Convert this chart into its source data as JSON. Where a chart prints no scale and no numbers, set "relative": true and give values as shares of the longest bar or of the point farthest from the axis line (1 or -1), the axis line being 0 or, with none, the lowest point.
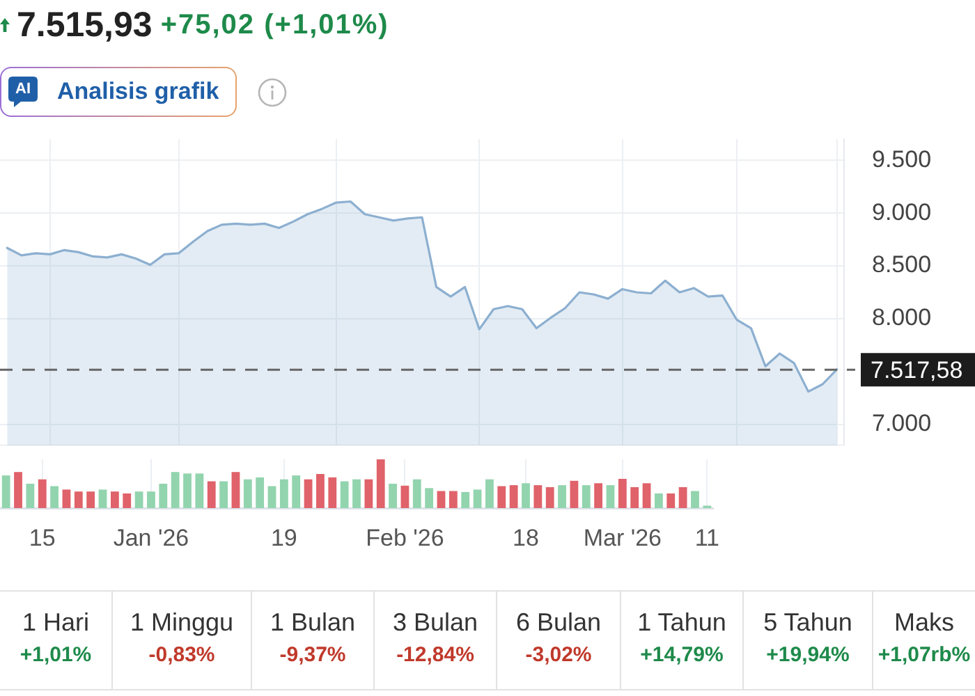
{
  "chart_data": [
    {
      "type": "area",
      "title": "7.515,93",
      "subtitle": "+75,02 (+1,01%)",
      "annotations": [
        "AI",
        "Analisis grafik"
      ],
      "categories": [
        null,
        null,
        null,
        null,
        null,
        null,
        null,
        null,
        null,
        null,
        null,
        null,
        null,
        null,
        null,
        null,
        null,
        null,
        null,
        null,
        null,
        null,
        null,
        null,
        null,
        null,
        null,
        null,
        null,
        null,
        null,
        null,
        null,
        null,
        null,
        null,
        null,
        null,
        null,
        null,
        null,
        null,
        null,
        null,
        null,
        null,
        null,
        null,
        null,
        null,
        null,
        null,
        null,
        null,
        null,
        null,
        null,
        null,
        null
      ],
      "values": [
        8670,
        8600,
        8620,
        8610,
        8650,
        8630,
        8590,
        8580,
        8610,
        8570,
        8510,
        8610,
        8620,
        8730,
        8830,
        8890,
        8900,
        8890,
        8900,
        8860,
        8920,
        8990,
        9040,
        9100,
        9110,
        8990,
        8960,
        8930,
        8950,
        8960,
        8300,
        8210,
        8300,
        7900,
        8090,
        8120,
        8090,
        7910,
        8010,
        8100,
        8250,
        8230,
        8190,
        8280,
        8250,
        8240,
        8360,
        8250,
        8290,
        8210,
        8220,
        7990,
        7910,
        7550,
        7670,
        7580,
        7310,
        7380,
        7520
      ],
      "color": "#8cafd0",
      "ylim": [
        6800,
        9700
      ],
      "yticks": [
        {
          "value": 7000,
          "label": "7.000"
        },
        {
          "value": 8000,
          "label": "8.000"
        },
        {
          "value": 8500,
          "label": "8.500"
        },
        {
          "value": 9000,
          "label": "9.000"
        },
        {
          "value": 9500,
          "label": "9.500"
        }
      ],
      "ref_lines": [
        {
          "axis": "y",
          "value": 7517.58,
          "label": "7.517,58",
          "color": "#666666",
          "line_style": "dashed"
        }
      ],
      "grid": true
    },
    {
      "type": "bar",
      "relative": true,
      "categories": [
        null,
        null,
        null,
        "15",
        null,
        null,
        null,
        null,
        null,
        null,
        null,
        null,
        "Jan '26",
        null,
        null,
        null,
        null,
        null,
        null,
        null,
        null,
        null,
        null,
        "19",
        null,
        null,
        null,
        null,
        null,
        null,
        null,
        null,
        null,
        "Feb '26",
        null,
        null,
        null,
        null,
        null,
        null,
        null,
        null,
        null,
        "18",
        null,
        null,
        null,
        null,
        null,
        null,
        null,
        "Mar '26",
        null,
        null,
        null,
        null,
        null,
        null,
        "11"
      ],
      "values": [
        0.67,
        0.74,
        0.5,
        0.59,
        0.45,
        0.38,
        0.34,
        0.34,
        0.38,
        0.34,
        0.3,
        0.34,
        0.34,
        0.5,
        0.74,
        0.71,
        0.71,
        0.55,
        0.55,
        0.74,
        0.59,
        0.63,
        0.45,
        0.59,
        0.67,
        0.59,
        0.7,
        0.63,
        0.55,
        0.59,
        0.59,
        1,
        0.5,
        0.46,
        0.59,
        0.41,
        0.35,
        0.35,
        0.33,
        0.38,
        0.59,
        0.45,
        0.47,
        0.51,
        0.47,
        0.43,
        0.47,
        0.56,
        0.47,
        0.51,
        0.47,
        0.6,
        0.43,
        0.51,
        0.3,
        0.3,
        0.43,
        0.35,
        0.05
      ],
      "colors": [
        "#92d4ae",
        "#e0626a",
        "#92d4ae",
        "#e0626a",
        "#92d4ae",
        "#e0626a",
        "#e0626a",
        "#e0626a",
        "#92d4ae",
        "#e0626a",
        "#e0626a",
        "#92d4ae",
        "#92d4ae",
        "#92d4ae",
        "#92d4ae",
        "#92d4ae",
        "#92d4ae",
        "#e0626a",
        "#92d4ae",
        "#e0626a",
        "#92d4ae",
        "#92d4ae",
        "#92d4ae",
        "#92d4ae",
        "#92d4ae",
        "#e0626a",
        "#e0626a",
        "#e0626a",
        "#92d4ae",
        "#92d4ae",
        "#e0626a",
        "#e0626a",
        "#92d4ae",
        "#e0626a",
        "#92d4ae",
        "#92d4ae",
        "#e0626a",
        "#e0626a",
        "#92d4ae",
        "#92d4ae",
        "#92d4ae",
        "#e0626a",
        "#e0626a",
        "#92d4ae",
        "#e0626a",
        "#e0626a",
        "#92d4ae",
        "#e0626a",
        "#92d4ae",
        "#e0626a",
        "#92d4ae",
        "#e0626a",
        "#e0626a",
        "#e0626a",
        "#92d4ae",
        "#e0626a",
        "#e0626a",
        "#92d4ae",
        "#92d4ae"
      ],
      "grid": "x",
      "tick_labels": "x"
    },
    {
      "type": "other",
      "categories": [
        "1 Hari",
        "1 Minggu",
        "1 Bulan",
        "3 Bulan",
        "6 Bulan",
        "1 Tahun",
        "5 Tahun",
        "Maks"
      ],
      "value_labels": [
        "+1,01%",
        "-0,83%",
        "-9,37%",
        "-12,84%",
        "-3,02%",
        "+14,79%",
        "+19,94%",
        "+1,07rb%"
      ],
      "colors": [
        "#1e8a4a",
        "#c0392b",
        "#c0392b",
        "#c0392b",
        "#c0392b",
        "#1e8a4a",
        "#1e8a4a",
        "#1e8a4a"
      ]
    }
  ]
}
